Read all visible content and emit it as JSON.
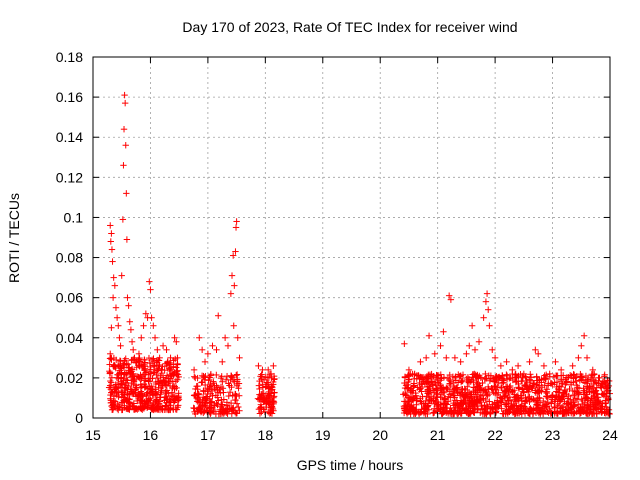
{
  "chart_data": {
    "type": "scatter",
    "title": "Day 170 of 2023, Rate Of TEC Index for receiver wind",
    "xlabel": "GPS time / hours",
    "ylabel": "ROTI / TECUs",
    "xlim": [
      15,
      24
    ],
    "ylim": [
      0,
      0.18
    ],
    "x_ticks": [
      15,
      16,
      17,
      18,
      19,
      20,
      21,
      22,
      23,
      24
    ],
    "y_ticks": [
      0,
      0.02,
      0.04,
      0.06,
      0.08,
      0.1,
      0.12,
      0.14,
      0.16,
      0.18
    ],
    "x_tick_labels": [
      "15",
      "16",
      "17",
      "18",
      "19",
      "20",
      "21",
      "22",
      "23",
      "24"
    ],
    "y_tick_labels": [
      "0",
      "0.02",
      "0.04",
      "0.06",
      "0.08",
      "0.1",
      "0.12",
      "0.14",
      "0.16",
      "0.18"
    ],
    "grid": true,
    "marker": "plus",
    "color": "#ff0000",
    "series": [
      {
        "values": [
          [
            15.3,
            0.096
          ],
          [
            15.32,
            0.092
          ],
          [
            15.31,
            0.088
          ],
          [
            15.33,
            0.084
          ],
          [
            15.34,
            0.078
          ],
          [
            15.36,
            0.07
          ],
          [
            15.38,
            0.066
          ],
          [
            15.35,
            0.06
          ],
          [
            15.32,
            0.045
          ],
          [
            15.3,
            0.032
          ],
          [
            15.4,
            0.055
          ],
          [
            15.42,
            0.05
          ],
          [
            15.44,
            0.046
          ],
          [
            15.46,
            0.04
          ],
          [
            15.48,
            0.036
          ],
          [
            15.5,
            0.071
          ],
          [
            15.52,
            0.099
          ],
          [
            15.53,
            0.126
          ],
          [
            15.54,
            0.144
          ],
          [
            15.55,
            0.161
          ],
          [
            15.56,
            0.157
          ],
          [
            15.57,
            0.136
          ],
          [
            15.58,
            0.112
          ],
          [
            15.59,
            0.089
          ],
          [
            15.6,
            0.06
          ],
          [
            15.62,
            0.056
          ],
          [
            15.64,
            0.048
          ],
          [
            15.66,
            0.044
          ],
          [
            15.68,
            0.038
          ],
          [
            15.7,
            0.034
          ],
          [
            15.72,
            0.03
          ],
          [
            15.76,
            0.028
          ],
          [
            15.8,
            0.032
          ],
          [
            15.84,
            0.04
          ],
          [
            15.88,
            0.046
          ],
          [
            15.92,
            0.052
          ],
          [
            15.95,
            0.05
          ],
          [
            15.98,
            0.068
          ],
          [
            16.0,
            0.064
          ],
          [
            16.02,
            0.05
          ],
          [
            16.05,
            0.046
          ],
          [
            16.08,
            0.04
          ],
          [
            16.12,
            0.034
          ],
          [
            16.16,
            0.03
          ],
          [
            16.22,
            0.036
          ],
          [
            16.28,
            0.034
          ],
          [
            16.35,
            0.03
          ],
          [
            16.42,
            0.04
          ],
          [
            16.45,
            0.038
          ],
          [
            16.47,
            0.03
          ],
          [
            16.76,
            0.024
          ],
          [
            16.78,
            0.02
          ],
          [
            16.85,
            0.04
          ],
          [
            16.9,
            0.034
          ],
          [
            16.95,
            0.028
          ],
          [
            17.0,
            0.032
          ],
          [
            17.08,
            0.036
          ],
          [
            17.15,
            0.034
          ],
          [
            17.18,
            0.051
          ],
          [
            17.25,
            0.028
          ],
          [
            17.3,
            0.04
          ],
          [
            17.35,
            0.036
          ],
          [
            17.4,
            0.062
          ],
          [
            17.42,
            0.071
          ],
          [
            17.44,
            0.081
          ],
          [
            17.45,
            0.046
          ],
          [
            17.46,
            0.066
          ],
          [
            17.48,
            0.083
          ],
          [
            17.49,
            0.095
          ],
          [
            17.5,
            0.098
          ],
          [
            17.52,
            0.04
          ],
          [
            17.55,
            0.03
          ],
          [
            17.88,
            0.026
          ],
          [
            17.95,
            0.024
          ],
          [
            18.05,
            0.024
          ],
          [
            18.1,
            0.022
          ],
          [
            18.14,
            0.026
          ],
          [
            20.42,
            0.037
          ],
          [
            20.5,
            0.024
          ],
          [
            20.6,
            0.022
          ],
          [
            20.7,
            0.028
          ],
          [
            20.8,
            0.03
          ],
          [
            20.85,
            0.041
          ],
          [
            20.95,
            0.032
          ],
          [
            21.05,
            0.036
          ],
          [
            21.1,
            0.043
          ],
          [
            21.15,
            0.03
          ],
          [
            21.2,
            0.061
          ],
          [
            21.23,
            0.059
          ],
          [
            21.3,
            0.03
          ],
          [
            21.4,
            0.028
          ],
          [
            21.5,
            0.032
          ],
          [
            21.55,
            0.036
          ],
          [
            21.6,
            0.046
          ],
          [
            21.65,
            0.034
          ],
          [
            21.72,
            0.038
          ],
          [
            21.8,
            0.05
          ],
          [
            21.84,
            0.058
          ],
          [
            21.86,
            0.062
          ],
          [
            21.88,
            0.054
          ],
          [
            21.9,
            0.046
          ],
          [
            21.95,
            0.034
          ],
          [
            22.0,
            0.03
          ],
          [
            22.1,
            0.026
          ],
          [
            22.2,
            0.028
          ],
          [
            22.3,
            0.024
          ],
          [
            22.4,
            0.026
          ],
          [
            22.5,
            0.022
          ],
          [
            22.6,
            0.028
          ],
          [
            22.7,
            0.034
          ],
          [
            22.75,
            0.032
          ],
          [
            22.85,
            0.026
          ],
          [
            22.95,
            0.022
          ],
          [
            23.05,
            0.028
          ],
          [
            23.15,
            0.024
          ],
          [
            23.25,
            0.02
          ],
          [
            23.35,
            0.026
          ],
          [
            23.45,
            0.03
          ],
          [
            23.5,
            0.036
          ],
          [
            23.55,
            0.041
          ],
          [
            23.6,
            0.03
          ],
          [
            23.7,
            0.024
          ],
          [
            23.8,
            0.02
          ],
          [
            23.9,
            0.018
          ],
          [
            23.98,
            0.016
          ]
        ]
      }
    ],
    "dense_bands": [
      {
        "x0": 15.28,
        "x1": 16.5,
        "ymin": 0.004,
        "ymax": 0.03,
        "count": 520
      },
      {
        "x0": 16.75,
        "x1": 17.55,
        "ymin": 0.002,
        "ymax": 0.022,
        "count": 200
      },
      {
        "x0": 17.87,
        "x1": 18.16,
        "ymin": 0.002,
        "ymax": 0.022,
        "count": 110
      },
      {
        "x0": 20.4,
        "x1": 24.0,
        "ymin": 0.002,
        "ymax": 0.022,
        "count": 1200
      }
    ]
  }
}
